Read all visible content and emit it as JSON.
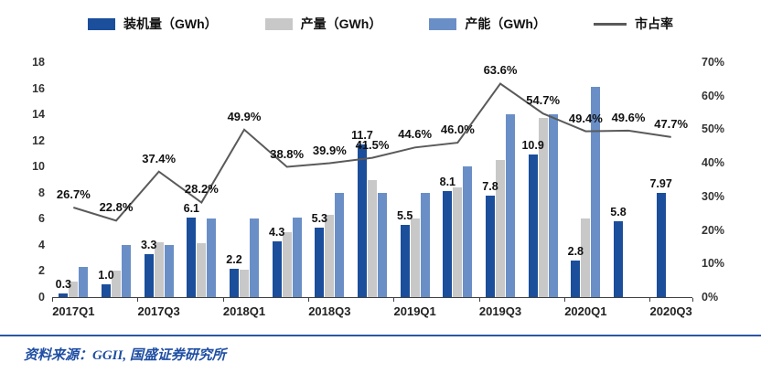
{
  "chart_data": {
    "type": "bar+line",
    "categories": [
      "2017Q1",
      "2017Q2",
      "2017Q3",
      "2017Q4",
      "2018Q1",
      "2018Q2",
      "2018Q3",
      "2018Q4",
      "2019Q1",
      "2019Q2",
      "2019Q3",
      "2019Q4",
      "2020Q1",
      "2020Q2",
      "2020Q3"
    ],
    "x_axis_labels_shown": [
      "2017Q1",
      "2017Q3",
      "2018Q1",
      "2018Q3",
      "2019Q1",
      "2019Q3",
      "2020Q1",
      "2020Q3"
    ],
    "left_axis": {
      "min": 0,
      "max": 18,
      "step": 2
    },
    "right_axis": {
      "min": 0,
      "max": 70,
      "step": 10,
      "suffix": "%"
    },
    "grid": false,
    "legend_position": "top",
    "series": [
      {
        "name": "装机量（GWh）",
        "key": "installed",
        "type": "bar",
        "color": "#1b4e9b",
        "values": [
          0.3,
          1.0,
          3.3,
          6.1,
          2.2,
          4.3,
          5.3,
          11.7,
          5.5,
          8.1,
          7.8,
          10.9,
          2.8,
          5.8,
          7.97
        ],
        "labels": [
          "0.3",
          "1.0",
          "3.3",
          "6.1",
          "2.2",
          "4.3",
          "5.3",
          "11.7",
          "5.5",
          "8.1",
          "7.8",
          "10.9",
          "2.8",
          "5.8",
          "7.97"
        ]
      },
      {
        "name": "产量（GWh）",
        "key": "production",
        "type": "bar",
        "color": "#c8c8c8",
        "values": [
          1.2,
          2.0,
          4.2,
          4.1,
          2.1,
          5.0,
          6.3,
          9.0,
          6.0,
          8.4,
          10.5,
          13.7,
          6.0,
          null,
          null
        ]
      },
      {
        "name": "产能（GWh）",
        "key": "capacity",
        "type": "bar",
        "color": "#6a8fc7",
        "values": [
          2.3,
          4.0,
          4.0,
          6.0,
          6.0,
          6.1,
          8.0,
          8.0,
          8.0,
          10.0,
          14.0,
          14.0,
          16.1,
          null,
          null
        ]
      },
      {
        "name": "市占率",
        "key": "market-share",
        "type": "line",
        "axis": "right",
        "color": "#5a5a5a",
        "values": [
          26.7,
          22.8,
          37.4,
          28.2,
          49.9,
          38.8,
          39.9,
          41.5,
          44.6,
          46.0,
          63.6,
          54.7,
          49.4,
          49.6,
          47.7
        ],
        "labels": [
          "26.7%",
          "22.8%",
          "37.4%",
          "28.2%",
          "49.9%",
          "38.8%",
          "39.9%",
          "41.5%",
          "44.6%",
          "46.0%",
          "63.6%",
          "54.7%",
          "49.4%",
          "49.6%",
          "47.7%"
        ]
      }
    ]
  },
  "footer": {
    "source": "资料来源：GGII, 国盛证券研究所"
  }
}
